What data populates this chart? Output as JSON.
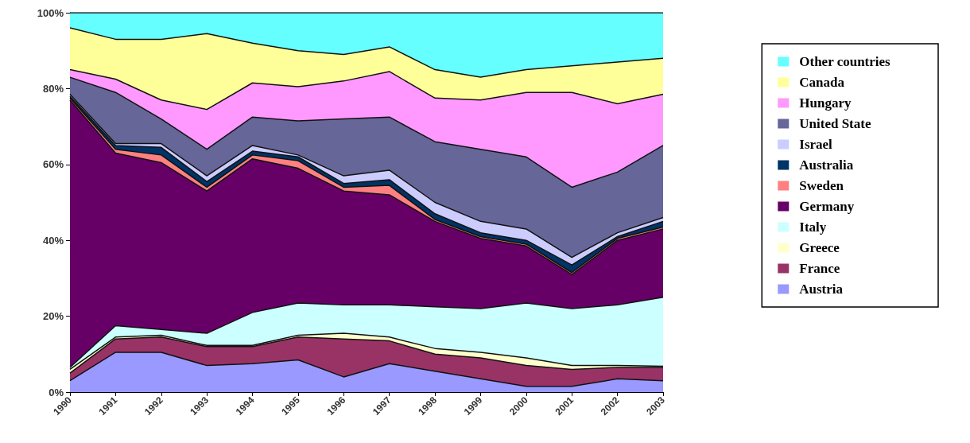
{
  "chart_data": {
    "type": "area",
    "stacked": true,
    "categories": [
      "1990",
      "1991",
      "1992",
      "1993",
      "1994",
      "1995",
      "1996",
      "1997",
      "1998",
      "1999",
      "2000",
      "2001",
      "2002",
      "2003"
    ],
    "series": [
      {
        "name": "Austria",
        "color": "#9999ff",
        "values": [
          3,
          10.5,
          10.5,
          7,
          7.5,
          8.5,
          4,
          7.5,
          5.5,
          3.5,
          1.5,
          1.5,
          3.5,
          3
        ]
      },
      {
        "name": "France",
        "color": "#993366",
        "values": [
          2,
          3.5,
          4,
          5,
          4.5,
          6,
          10,
          6,
          4.5,
          5.5,
          5.5,
          4.5,
          3,
          3.5
        ]
      },
      {
        "name": "Greece",
        "color": "#ffffcc",
        "values": [
          1,
          0.5,
          0.5,
          0.3,
          0.3,
          0.5,
          1.5,
          1,
          1.5,
          1.5,
          2,
          1,
          0.5,
          0.3
        ]
      },
      {
        "name": "Italy",
        "color": "#ccffff",
        "values": [
          0.5,
          3,
          1.5,
          3.2,
          8.7,
          8.5,
          7.5,
          8.5,
          11,
          11.5,
          14.5,
          15,
          16,
          18.2
        ]
      },
      {
        "name": "Germany",
        "color": "#660066",
        "values": [
          70.5,
          45.5,
          44,
          37.5,
          40.5,
          35.5,
          30,
          29,
          22.5,
          18.5,
          15,
          9,
          17,
          18
        ]
      },
      {
        "name": "Sweden",
        "color": "#ff8080",
        "values": [
          0.5,
          1,
          2,
          1,
          1,
          2,
          1,
          2.5,
          0.5,
          0.5,
          0.5,
          0.5,
          0.5,
          0.5
        ]
      },
      {
        "name": "Australia",
        "color": "#003366",
        "values": [
          0.5,
          1,
          2,
          1.5,
          1,
          1,
          1,
          1.5,
          1.5,
          1,
          1,
          2,
          0.5,
          1.5
        ]
      },
      {
        "name": "Israel",
        "color": "#ccccff",
        "values": [
          0.5,
          0.5,
          1,
          1.5,
          1.5,
          0.5,
          2,
          2.5,
          3,
          3,
          3,
          2,
          1,
          1
        ]
      },
      {
        "name": "United State",
        "color": "#666699",
        "values": [
          4.5,
          13.5,
          6.5,
          7,
          7.5,
          9,
          15,
          14,
          16,
          19,
          19,
          18.5,
          16,
          19
        ]
      },
      {
        "name": "Hungary",
        "color": "#ff99ff",
        "values": [
          2,
          3.5,
          5,
          10.5,
          9,
          9,
          10,
          12,
          11.5,
          13,
          17,
          25,
          18,
          13.5
        ]
      },
      {
        "name": "Canada",
        "color": "#ffff99",
        "values": [
          11,
          10.5,
          16,
          20,
          10.5,
          9.5,
          7,
          6.5,
          7.5,
          6,
          6,
          7,
          11,
          9.5
        ]
      },
      {
        "name": "Other countries",
        "color": "#66ffff",
        "values": [
          4,
          7,
          7,
          5.5,
          8,
          10,
          11,
          9,
          15,
          17,
          15,
          14,
          13,
          12
        ]
      }
    ],
    "ylim": [
      0,
      100
    ],
    "yticks": [
      {
        "value": 0,
        "label": "0%"
      },
      {
        "value": 20,
        "label": "20%"
      },
      {
        "value": 40,
        "label": "40%"
      },
      {
        "value": 60,
        "label": "60%"
      },
      {
        "value": 80,
        "label": "80%"
      },
      {
        "value": 100,
        "label": "100%"
      }
    ],
    "legend": "right"
  }
}
